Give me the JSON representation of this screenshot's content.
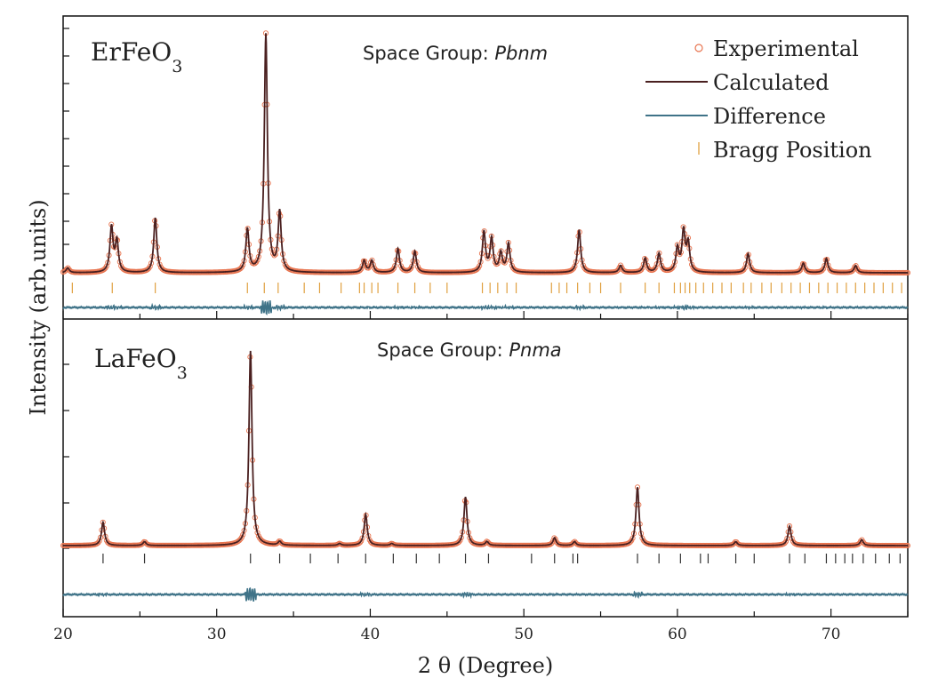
{
  "chart_data": {
    "type": "line",
    "xlabel": "2 θ (Degree)",
    "ylabel": "Intensity (arb.units)",
    "xlim": [
      20,
      75
    ],
    "x_ticks": [
      20,
      30,
      40,
      50,
      60,
      70
    ],
    "x_tick_labels": [
      "20",
      "30",
      "40",
      "50",
      "60",
      "70"
    ],
    "y_ticks_shown": false,
    "legend": {
      "position": "top-right",
      "entries": [
        {
          "label": "Experimental",
          "marker": "open-circle",
          "color": "#e8744f"
        },
        {
          "label": "Calculated",
          "marker": "line",
          "color": "#4a2020"
        },
        {
          "label": "Difference",
          "marker": "line",
          "color": "#3f7388"
        },
        {
          "label": "Bragg Position",
          "marker": "tick",
          "color": "#e0a040"
        }
      ]
    },
    "panels": [
      {
        "sample_label": {
          "base": "ErFeO",
          "sub": "3"
        },
        "space_group": {
          "prefix": "Space Group: ",
          "name": "Pbnm"
        },
        "baseline": 0.03,
        "peak_width": 0.12,
        "peaks": [
          {
            "x": 20.3,
            "h": 0.02
          },
          {
            "x": 23.15,
            "h": 0.19
          },
          {
            "x": 23.5,
            "h": 0.13
          },
          {
            "x": 26.0,
            "h": 0.23
          },
          {
            "x": 32.0,
            "h": 0.18
          },
          {
            "x": 33.2,
            "h": 1.0
          },
          {
            "x": 34.1,
            "h": 0.25
          },
          {
            "x": 39.6,
            "h": 0.05
          },
          {
            "x": 40.1,
            "h": 0.05
          },
          {
            "x": 41.8,
            "h": 0.1
          },
          {
            "x": 42.9,
            "h": 0.09
          },
          {
            "x": 47.4,
            "h": 0.17
          },
          {
            "x": 47.9,
            "h": 0.14
          },
          {
            "x": 48.5,
            "h": 0.08
          },
          {
            "x": 49.0,
            "h": 0.12
          },
          {
            "x": 53.6,
            "h": 0.18
          },
          {
            "x": 56.3,
            "h": 0.03
          },
          {
            "x": 57.9,
            "h": 0.06
          },
          {
            "x": 58.8,
            "h": 0.08
          },
          {
            "x": 60.0,
            "h": 0.1
          },
          {
            "x": 60.4,
            "h": 0.17
          },
          {
            "x": 60.7,
            "h": 0.12
          },
          {
            "x": 64.6,
            "h": 0.08
          },
          {
            "x": 68.2,
            "h": 0.04
          },
          {
            "x": 69.7,
            "h": 0.06
          },
          {
            "x": 71.6,
            "h": 0.03
          }
        ],
        "bragg_color": "#e0a040",
        "bragg_positions": [
          20.6,
          23.2,
          26.0,
          32.0,
          33.1,
          34.0,
          35.7,
          36.7,
          38.1,
          39.3,
          39.6,
          40.1,
          40.5,
          41.8,
          42.9,
          43.9,
          45.0,
          47.3,
          47.8,
          48.3,
          48.9,
          49.5,
          51.8,
          52.3,
          52.8,
          53.5,
          54.3,
          55.0,
          56.3,
          57.9,
          58.8,
          59.8,
          60.2,
          60.5,
          60.8,
          61.2,
          61.7,
          62.3,
          62.9,
          63.5,
          64.3,
          64.8,
          65.5,
          66.1,
          66.8,
          67.4,
          68.0,
          68.6,
          69.2,
          69.8,
          70.4,
          71.0,
          71.6,
          72.2,
          72.8,
          73.4,
          74.0,
          74.6
        ]
      },
      {
        "sample_label": {
          "base": "LaFeO",
          "sub": "3"
        },
        "space_group": {
          "prefix": "Space Group: ",
          "name": "Pnma"
        },
        "baseline": 0.02,
        "peak_width": 0.12,
        "peaks": [
          {
            "x": 22.6,
            "h": 0.12
          },
          {
            "x": 25.3,
            "h": 0.02
          },
          {
            "x": 32.2,
            "h": 1.0
          },
          {
            "x": 34.1,
            "h": 0.02
          },
          {
            "x": 38.0,
            "h": 0.01
          },
          {
            "x": 39.7,
            "h": 0.16
          },
          {
            "x": 41.4,
            "h": 0.01
          },
          {
            "x": 46.2,
            "h": 0.25
          },
          {
            "x": 47.6,
            "h": 0.02
          },
          {
            "x": 52.0,
            "h": 0.04
          },
          {
            "x": 53.3,
            "h": 0.02
          },
          {
            "x": 57.4,
            "h": 0.3
          },
          {
            "x": 63.8,
            "h": 0.02
          },
          {
            "x": 67.3,
            "h": 0.1
          },
          {
            "x": 72.0,
            "h": 0.03
          }
        ],
        "bragg_color": "#333333",
        "bragg_positions": [
          22.6,
          25.3,
          32.2,
          34.1,
          36.1,
          37.9,
          39.7,
          41.5,
          43.0,
          44.5,
          46.2,
          47.7,
          50.5,
          52.0,
          53.2,
          53.5,
          57.4,
          58.8,
          60.2,
          61.5,
          62.0,
          63.8,
          65.0,
          67.3,
          68.3,
          69.7,
          70.3,
          70.9,
          71.4,
          72.1,
          72.9,
          73.8,
          74.5
        ]
      }
    ]
  }
}
